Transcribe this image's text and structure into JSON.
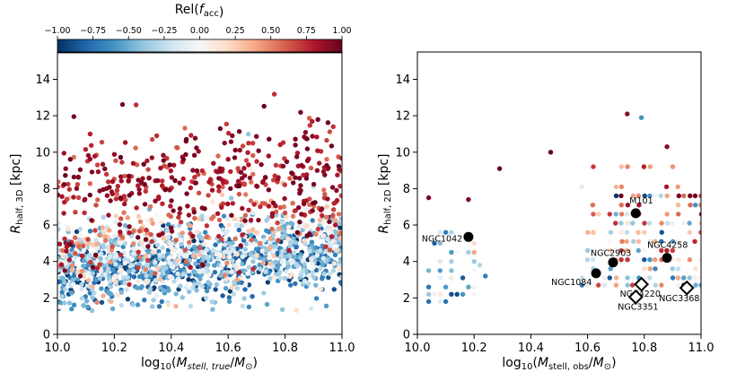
{
  "chart_data": [
    {
      "type": "scatter",
      "panel": "left",
      "xlabel": "log10(Mstell,true/M⊙)",
      "ylabel": "Rhalf,3D [kpc]",
      "xlim": [
        10.0,
        11.0
      ],
      "ylim": [
        0,
        15.5
      ],
      "xticks": [
        "10.0",
        "10.2",
        "10.4",
        "10.6",
        "10.8",
        "11.0"
      ],
      "yticks": [
        "0",
        "2",
        "4",
        "6",
        "8",
        "10",
        "12",
        "14"
      ],
      "color_variable": "Rel(facc)",
      "colorbar": {
        "label": "Rel(facc)",
        "range": [
          -1.0,
          1.0
        ],
        "ticks": [
          "−1.00",
          "−0.75",
          "−0.50",
          "−0.25",
          "0.00",
          "0.25",
          "0.50",
          "0.75",
          "1.00"
        ],
        "colors": [
          "#053061",
          "#2166ac",
          "#4393c3",
          "#92c5de",
          "#d1e5f0",
          "#f7f7f7",
          "#fddbc7",
          "#f4a582",
          "#d6604d",
          "#b2182b",
          "#67001f"
        ]
      },
      "description": "Dense cloud of ~1800 simulated galaxies; red (high Rel(facc)) points dominate at large radii (6-14 kpc), blue points concentrate at 1.5-5 kpc; radius rises with stellar mass."
    },
    {
      "type": "scatter",
      "panel": "right",
      "xlabel": "log10(Mstell,obs/M⊙)",
      "ylabel": "Rhalf,2D [kpc]",
      "xlim": [
        10.0,
        11.0
      ],
      "ylim": [
        0,
        15.5
      ],
      "xticks": [
        "10.0",
        "10.2",
        "10.4",
        "10.6",
        "10.8",
        "11.0"
      ],
      "yticks": [
        "0",
        "2",
        "4",
        "6",
        "8",
        "10",
        "12",
        "14"
      ],
      "observed_galaxies": [
        {
          "name": "NGC1042",
          "x": 10.18,
          "y": 5.35,
          "marker": "circle"
        },
        {
          "name": "M101",
          "x": 10.77,
          "y": 6.65,
          "marker": "circle"
        },
        {
          "name": "NGC2903",
          "x": 10.69,
          "y": 3.95,
          "marker": "circle"
        },
        {
          "name": "NGC4258",
          "x": 10.88,
          "y": 4.2,
          "marker": "circle"
        },
        {
          "name": "NGC1084",
          "x": 10.63,
          "y": 3.35,
          "marker": "circle"
        },
        {
          "name": "NGC4220",
          "x": 10.79,
          "y": 2.75,
          "marker": "diamond"
        },
        {
          "name": "NGC3351",
          "x": 10.77,
          "y": 2.05,
          "marker": "diamond"
        },
        {
          "name": "NGC3368",
          "x": 10.95,
          "y": 2.55,
          "marker": "diamond"
        }
      ],
      "description": "Sparse subsample of simulated galaxies on a quantized grid: a low-mass group at 10.03-10.2 and a high-mass group at 10.58-11.0, colored by Rel(facc)."
    }
  ]
}
